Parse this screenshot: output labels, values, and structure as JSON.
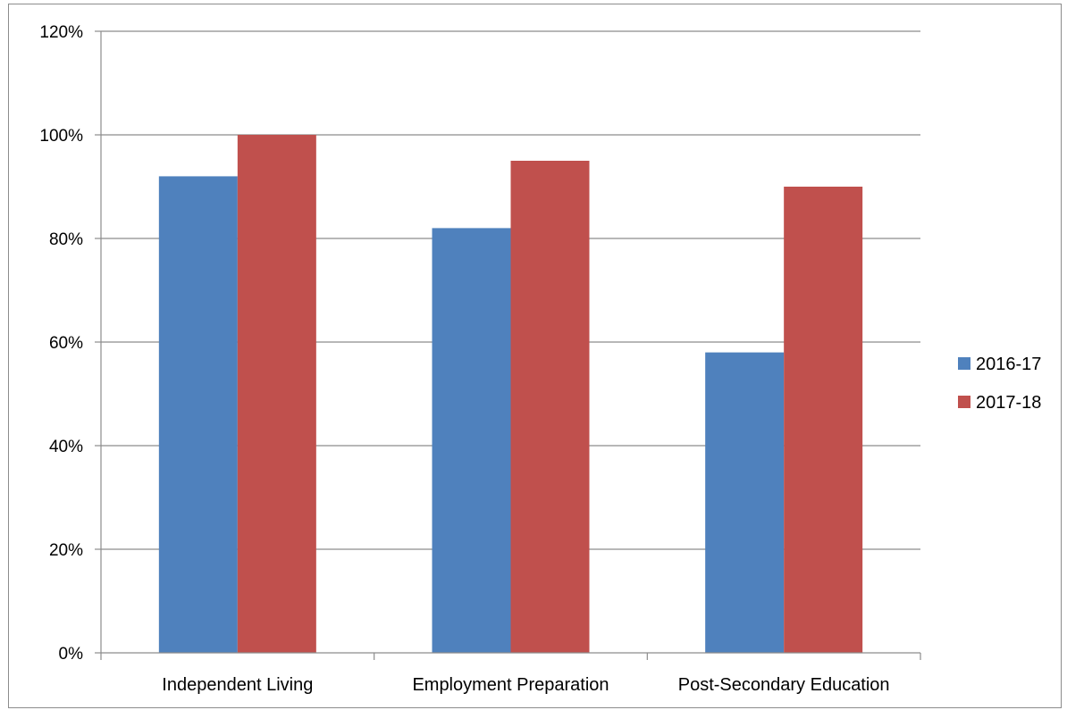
{
  "chart_data": {
    "type": "bar",
    "categories": [
      "Independent Living",
      "Employment Preparation",
      "Post-Secondary Education"
    ],
    "series": [
      {
        "name": "2016-17",
        "color": "#4f81bd",
        "values": [
          92,
          82,
          58
        ]
      },
      {
        "name": "2017-18",
        "color": "#c0504d",
        "values": [
          100,
          95,
          90
        ]
      }
    ],
    "ylim": [
      0,
      120
    ],
    "y_ticks": [
      0,
      20,
      40,
      60,
      80,
      100,
      120
    ],
    "y_tick_format": "percent",
    "grid": true,
    "legend_position": "right",
    "title": "",
    "xlabel": "",
    "ylabel": ""
  },
  "colors": {
    "grid": "#8c8c8c",
    "axis": "#8c8c8c",
    "text": "#000000"
  }
}
